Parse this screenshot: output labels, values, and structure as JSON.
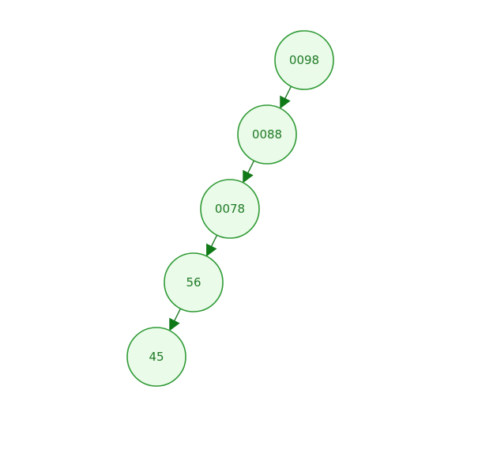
{
  "diagram": {
    "type": "tree",
    "colors": {
      "node_fill": "#eafbe9",
      "node_stroke": "#2f9a35",
      "label": "#1f7a26",
      "edge": "#117a18"
    },
    "nodes": [
      {
        "id": "n0098",
        "label": "0098"
      },
      {
        "id": "n0088",
        "label": "0088"
      },
      {
        "id": "n0078",
        "label": "0078"
      },
      {
        "id": "n56",
        "label": "56"
      },
      {
        "id": "n45",
        "label": "45"
      }
    ],
    "edges": [
      {
        "from": "n0098",
        "to": "n0088"
      },
      {
        "from": "n0088",
        "to": "n0078"
      },
      {
        "from": "n0078",
        "to": "n56"
      },
      {
        "from": "n56",
        "to": "n45"
      }
    ]
  }
}
